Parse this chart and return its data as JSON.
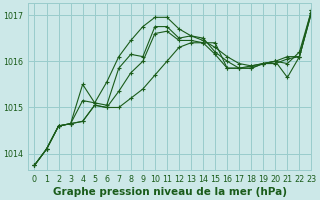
{
  "title": "Graphe pression niveau de la mer (hPa)",
  "bg_color": "#cce8e8",
  "grid_color": "#99cccc",
  "line_color": "#1a5c1a",
  "xlim": [
    -0.5,
    23
  ],
  "ylim": [
    1013.65,
    1017.25
  ],
  "yticks": [
    1014,
    1015,
    1016,
    1017
  ],
  "xticks": [
    0,
    1,
    2,
    3,
    4,
    5,
    6,
    7,
    8,
    9,
    10,
    11,
    12,
    13,
    14,
    15,
    16,
    17,
    18,
    19,
    20,
    21,
    22,
    23
  ],
  "series": [
    [
      1013.75,
      1014.1,
      1014.6,
      1014.65,
      1015.5,
      1015.1,
      1015.05,
      1015.85,
      1016.15,
      1016.1,
      1016.75,
      1016.75,
      1016.5,
      1016.55,
      1016.5,
      1016.2,
      1016.0,
      1015.85,
      1015.9,
      1015.95,
      1016.0,
      1016.1,
      1016.1,
      1017.1
    ],
    [
      1013.75,
      1014.1,
      1014.6,
      1014.65,
      1015.15,
      1015.1,
      1015.55,
      1016.1,
      1016.45,
      1016.75,
      1016.95,
      1016.95,
      1016.7,
      1016.55,
      1016.45,
      1016.3,
      1016.1,
      1015.95,
      1015.9,
      1015.95,
      1016.0,
      1015.95,
      1016.2,
      1017.1
    ],
    [
      1013.75,
      1014.1,
      1014.6,
      1014.65,
      1014.7,
      1015.05,
      1015.0,
      1015.35,
      1015.75,
      1016.0,
      1016.6,
      1016.65,
      1016.45,
      1016.45,
      1016.4,
      1016.15,
      1015.85,
      1015.85,
      1015.85,
      1015.95,
      1015.95,
      1016.05,
      1016.1,
      1017.05
    ],
    [
      1013.75,
      1014.1,
      1014.6,
      1014.65,
      1014.7,
      1015.05,
      1015.0,
      1015.0,
      1015.2,
      1015.4,
      1015.7,
      1016.0,
      1016.3,
      1016.4,
      1016.4,
      1016.4,
      1015.85,
      1015.85,
      1015.85,
      1015.95,
      1016.0,
      1015.65,
      1016.1,
      1017.05
    ]
  ],
  "marker": "+",
  "linewidth": 0.8,
  "markersize": 3.0,
  "title_fontsize": 7.5,
  "tick_fontsize": 5.8,
  "xlabel_pad": 2
}
